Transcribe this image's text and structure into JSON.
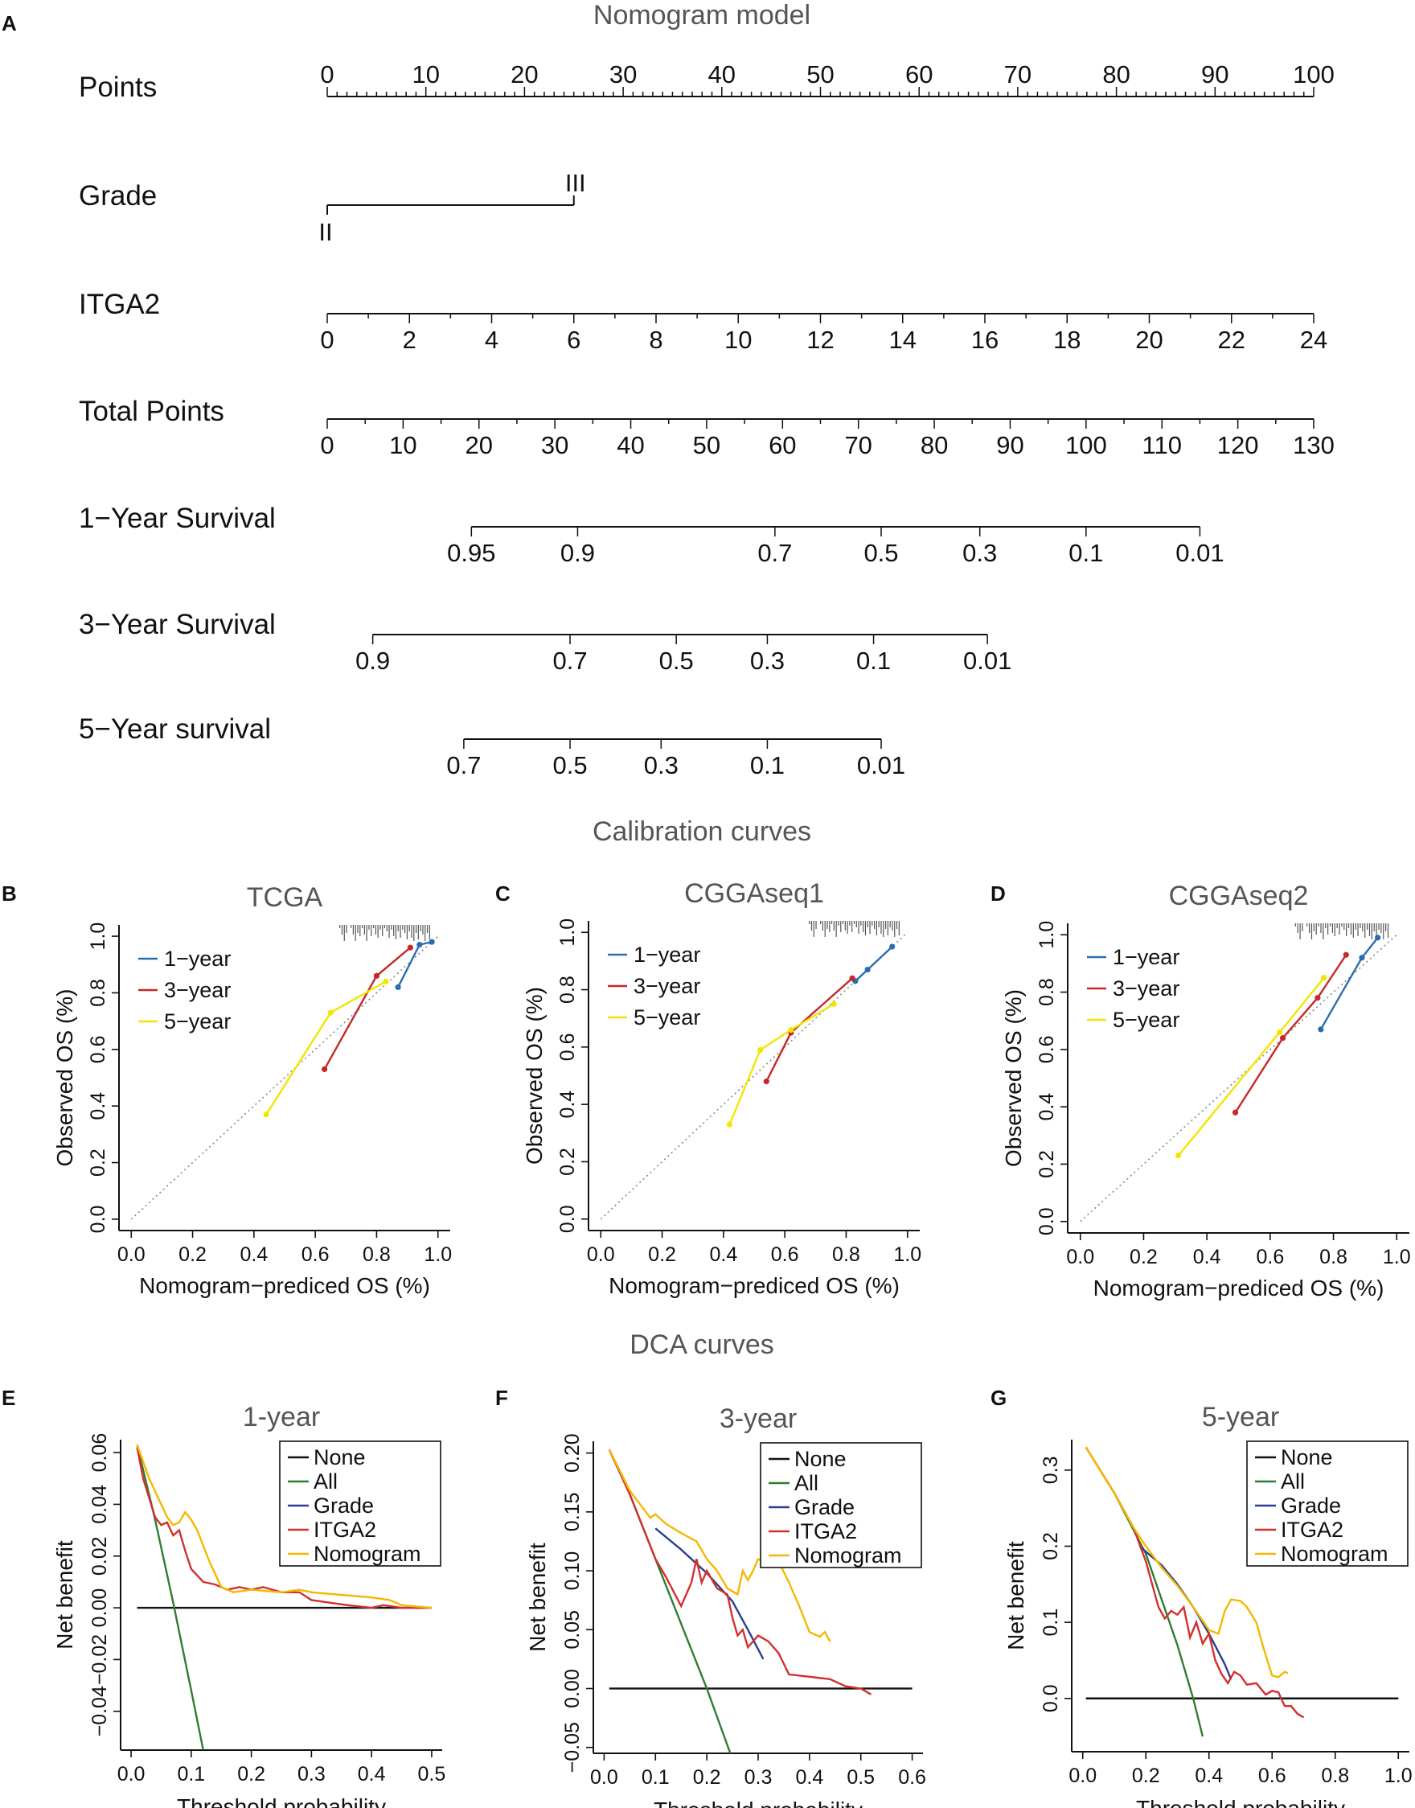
{
  "figure": {
    "section_titles": {
      "nomogram": "Nomogram model",
      "calibration": "Calibration curves",
      "dca": "DCA curves"
    },
    "panel_letters": [
      "A",
      "B",
      "C",
      "D",
      "E",
      "F",
      "G"
    ]
  },
  "chart_data": [
    {
      "type": "nomogram",
      "panel": "A",
      "title": "Nomogram model",
      "scales": [
        {
          "label": "Points",
          "ticks": [
            "0",
            "10",
            "20",
            "30",
            "40",
            "50",
            "60",
            "70",
            "80",
            "90",
            "100"
          ],
          "values": [
            0,
            10,
            20,
            30,
            40,
            50,
            60,
            70,
            80,
            90,
            100
          ],
          "min": 0,
          "max": 100
        },
        {
          "label": "Grade",
          "levels": [
            "II",
            "III"
          ],
          "points": [
            0,
            25
          ]
        },
        {
          "label": "ITGA2",
          "ticks": [
            "0",
            "2",
            "4",
            "6",
            "8",
            "10",
            "12",
            "14",
            "16",
            "18",
            "20",
            "22",
            "24"
          ],
          "values": [
            0,
            2,
            4,
            6,
            8,
            10,
            12,
            14,
            16,
            18,
            20,
            22,
            24
          ],
          "min": 0,
          "max": 24,
          "points_range": [
            0,
            100
          ]
        },
        {
          "label": "Total Points",
          "ticks": [
            "0",
            "10",
            "20",
            "30",
            "40",
            "50",
            "60",
            "70",
            "80",
            "90",
            "100",
            "110",
            "120",
            "130"
          ],
          "values": [
            0,
            10,
            20,
            30,
            40,
            50,
            60,
            70,
            80,
            90,
            100,
            110,
            120,
            130
          ],
          "min": 0,
          "max": 130
        },
        {
          "label": "1−Year Survival",
          "ticks": [
            "0.95",
            "0.9",
            "0.7",
            "0.5",
            "0.3",
            "0.1",
            "0.01"
          ],
          "total_points": [
            19,
            33,
            59,
            73,
            86,
            100,
            115
          ]
        },
        {
          "label": "3−Year Survival",
          "ticks": [
            "0.9",
            "0.7",
            "0.5",
            "0.3",
            "0.1",
            "0.01"
          ],
          "total_points": [
            6,
            32,
            46,
            58,
            72,
            87
          ]
        },
        {
          "label": "5−Year survival",
          "ticks": [
            "0.7",
            "0.5",
            "0.3",
            "0.1",
            "0.01"
          ],
          "total_points": [
            18,
            32,
            44,
            58,
            73
          ]
        }
      ]
    },
    {
      "type": "line",
      "panel": "B",
      "title": "TCGA",
      "xlabel": "Nomogram−prediced OS (%)",
      "ylabel": "Observed OS (%)",
      "xlim": [
        0,
        1
      ],
      "ylim": [
        0,
        1
      ],
      "xticks": [
        "0.0",
        "0.2",
        "0.4",
        "0.6",
        "0.8",
        "1.0"
      ],
      "yticks": [
        "0.0",
        "0.2",
        "0.4",
        "0.6",
        "0.8",
        "1.0"
      ],
      "legend": [
        "1−year",
        "3−year",
        "5−year"
      ],
      "series": [
        {
          "name": "1−year",
          "color": "#2b6cb0",
          "x": [
            0.87,
            0.94,
            0.98
          ],
          "y": [
            0.82,
            0.97,
            0.98
          ]
        },
        {
          "name": "3−year",
          "color": "#c62828",
          "x": [
            0.63,
            0.8,
            0.91
          ],
          "y": [
            0.53,
            0.86,
            0.96
          ]
        },
        {
          "name": "5−year",
          "color": "#f2e600",
          "x": [
            0.44,
            0.65,
            0.83
          ],
          "y": [
            0.37,
            0.73,
            0.84
          ]
        }
      ]
    },
    {
      "type": "line",
      "panel": "C",
      "title": "CGGAseq1",
      "xlabel": "Nomogram−prediced OS (%)",
      "ylabel": "Observed OS (%)",
      "xlim": [
        0,
        1
      ],
      "ylim": [
        0,
        1
      ],
      "xticks": [
        "0.0",
        "0.2",
        "0.4",
        "0.6",
        "0.8",
        "1.0"
      ],
      "yticks": [
        "0.0",
        "0.2",
        "0.4",
        "0.6",
        "0.8",
        "1.0"
      ],
      "legend": [
        "1−year",
        "3−year",
        "5−year"
      ],
      "series": [
        {
          "name": "1−year",
          "color": "#2b6cb0",
          "x": [
            0.83,
            0.87,
            0.95
          ],
          "y": [
            0.83,
            0.87,
            0.95
          ]
        },
        {
          "name": "3−year",
          "color": "#c62828",
          "x": [
            0.54,
            0.62,
            0.82
          ],
          "y": [
            0.48,
            0.65,
            0.84
          ]
        },
        {
          "name": "5−year",
          "color": "#f2e600",
          "x": [
            0.42,
            0.52,
            0.62,
            0.76
          ],
          "y": [
            0.33,
            0.59,
            0.66,
            0.75
          ]
        }
      ]
    },
    {
      "type": "line",
      "panel": "D",
      "title": "CGGAseq2",
      "xlabel": "Nomogram−prediced OS (%)",
      "ylabel": "Observed OS (%)",
      "xlim": [
        0,
        1
      ],
      "ylim": [
        0,
        1
      ],
      "xticks": [
        "0.0",
        "0.2",
        "0.4",
        "0.6",
        "0.8",
        "1.0"
      ],
      "yticks": [
        "0.0",
        "0.2",
        "0.4",
        "0.6",
        "0.8",
        "1.0"
      ],
      "legend": [
        "1−year",
        "3−year",
        "5−year"
      ],
      "series": [
        {
          "name": "1−year",
          "color": "#2b6cb0",
          "x": [
            0.76,
            0.89,
            0.94
          ],
          "y": [
            0.67,
            0.92,
            0.99
          ]
        },
        {
          "name": "3−year",
          "color": "#c62828",
          "x": [
            0.49,
            0.64,
            0.75,
            0.84
          ],
          "y": [
            0.38,
            0.64,
            0.78,
            0.93
          ]
        },
        {
          "name": "5−year",
          "color": "#f2e600",
          "x": [
            0.31,
            0.63,
            0.77
          ],
          "y": [
            0.23,
            0.66,
            0.85
          ]
        }
      ]
    },
    {
      "type": "line",
      "panel": "E",
      "title": "1-year",
      "xlabel": "Threshold probability",
      "ylabel": "Net benefit",
      "xlim": [
        0,
        0.5
      ],
      "ylim": [
        -0.055,
        0.065
      ],
      "xticks": [
        "0.0",
        "0.1",
        "0.2",
        "0.3",
        "0.4",
        "0.5"
      ],
      "xtick_values": [
        0,
        0.1,
        0.2,
        0.3,
        0.4,
        0.5
      ],
      "yticks": [
        "−0.04",
        "−0.02",
        "0.00",
        "0.02",
        "0.04",
        "0.06"
      ],
      "ytick_values": [
        -0.04,
        -0.02,
        0,
        0.02,
        0.04,
        0.06
      ],
      "legend": [
        "None",
        "All",
        "Grade",
        "ITGA2",
        "Nomogram"
      ],
      "series": [
        {
          "name": "None",
          "color": "#111111",
          "x": [
            0.01,
            0.5
          ],
          "y": [
            0,
            0
          ]
        },
        {
          "name": "All",
          "color": "#2e7d32",
          "x": [
            0.01,
            0.04,
            0.07,
            0.1,
            0.12
          ],
          "y": [
            0.063,
            0.034,
            0.002,
            -0.032,
            -0.055
          ]
        },
        {
          "name": "Grade",
          "color": "#2c3e8f",
          "x": [],
          "y": []
        },
        {
          "name": "ITGA2",
          "color": "#d32f2f",
          "x": [
            0.01,
            0.02,
            0.04,
            0.05,
            0.06,
            0.07,
            0.08,
            0.09,
            0.1,
            0.12,
            0.14,
            0.16,
            0.18,
            0.2,
            0.22,
            0.25,
            0.28,
            0.3,
            0.33,
            0.36,
            0.4,
            0.42,
            0.45,
            0.5
          ],
          "y": [
            0.062,
            0.05,
            0.035,
            0.032,
            0.033,
            0.028,
            0.03,
            0.022,
            0.015,
            0.01,
            0.009,
            0.007,
            0.008,
            0.007,
            0.008,
            0.006,
            0.006,
            0.003,
            0.002,
            0.001,
            0.0,
            0.001,
            0.0,
            0.0
          ]
        },
        {
          "name": "Nomogram",
          "color": "#f5b800",
          "x": [
            0.01,
            0.03,
            0.05,
            0.06,
            0.07,
            0.08,
            0.09,
            0.1,
            0.11,
            0.13,
            0.15,
            0.17,
            0.2,
            0.25,
            0.28,
            0.3,
            0.35,
            0.4,
            0.43,
            0.45,
            0.5
          ],
          "y": [
            0.063,
            0.05,
            0.04,
            0.035,
            0.032,
            0.033,
            0.037,
            0.034,
            0.03,
            0.018,
            0.008,
            0.006,
            0.007,
            0.006,
            0.007,
            0.006,
            0.005,
            0.004,
            0.003,
            0.001,
            0.0
          ]
        }
      ]
    },
    {
      "type": "line",
      "panel": "F",
      "title": "3-year",
      "xlabel": "Threshold probability",
      "ylabel": "Net benefit",
      "xlim": [
        0,
        0.6
      ],
      "ylim": [
        -0.055,
        0.21
      ],
      "xticks": [
        "0.0",
        "0.1",
        "0.2",
        "0.3",
        "0.4",
        "0.5",
        "0.6"
      ],
      "xtick_values": [
        0,
        0.1,
        0.2,
        0.3,
        0.4,
        0.5,
        0.6
      ],
      "yticks": [
        "−0.05",
        "0.00",
        "0.05",
        "0.10",
        "0.15",
        "0.20"
      ],
      "ytick_values": [
        -0.05,
        0,
        0.05,
        0.1,
        0.15,
        0.2
      ],
      "legend": [
        "None",
        "All",
        "Grade",
        "ITGA2",
        "Nomogram"
      ],
      "series": [
        {
          "name": "None",
          "color": "#111111",
          "x": [
            0.01,
            0.6
          ],
          "y": [
            0,
            0
          ]
        },
        {
          "name": "All",
          "color": "#2e7d32",
          "x": [
            0.01,
            0.05,
            0.1,
            0.15,
            0.2,
            0.25,
            0.26
          ],
          "y": [
            0.203,
            0.165,
            0.11,
            0.055,
            0.0,
            -0.06,
            -0.07
          ]
        },
        {
          "name": "Grade",
          "color": "#2c3e8f",
          "x": [
            0.1,
            0.15,
            0.2,
            0.25,
            0.28,
            0.31
          ],
          "y": [
            0.136,
            0.118,
            0.098,
            0.074,
            0.05,
            0.025
          ]
        },
        {
          "name": "ITGA2",
          "color": "#d32f2f",
          "x": [
            0.01,
            0.05,
            0.1,
            0.12,
            0.15,
            0.17,
            0.18,
            0.19,
            0.2,
            0.22,
            0.24,
            0.25,
            0.26,
            0.27,
            0.28,
            0.3,
            0.32,
            0.34,
            0.36,
            0.4,
            0.44,
            0.47,
            0.5,
            0.52
          ],
          "y": [
            0.203,
            0.165,
            0.11,
            0.095,
            0.07,
            0.09,
            0.11,
            0.09,
            0.1,
            0.085,
            0.08,
            0.06,
            0.045,
            0.05,
            0.035,
            0.045,
            0.04,
            0.03,
            0.012,
            0.01,
            0.008,
            0.002,
            0.0,
            -0.005
          ]
        },
        {
          "name": "Nomogram",
          "color": "#f5b800",
          "x": [
            0.01,
            0.05,
            0.09,
            0.1,
            0.12,
            0.15,
            0.18,
            0.2,
            0.22,
            0.24,
            0.26,
            0.27,
            0.28,
            0.29,
            0.3,
            0.32,
            0.34,
            0.36,
            0.38,
            0.4,
            0.42,
            0.43,
            0.44
          ],
          "y": [
            0.203,
            0.168,
            0.145,
            0.148,
            0.14,
            0.132,
            0.125,
            0.11,
            0.1,
            0.085,
            0.08,
            0.1,
            0.092,
            0.1,
            0.11,
            0.105,
            0.108,
            0.09,
            0.07,
            0.048,
            0.044,
            0.048,
            0.04
          ]
        }
      ]
    },
    {
      "type": "line",
      "panel": "G",
      "title": "5-year",
      "xlabel": "Threshold probability",
      "ylabel": "Net benefit",
      "xlim": [
        0,
        1.0
      ],
      "ylim": [
        -0.07,
        0.34
      ],
      "xticks": [
        "0.0",
        "0.2",
        "0.4",
        "0.6",
        "0.8",
        "1.0"
      ],
      "xtick_values": [
        0,
        0.2,
        0.4,
        0.6,
        0.8,
        1.0
      ],
      "yticks": [
        "0.0",
        "0.1",
        "0.2",
        "0.3"
      ],
      "ytick_values": [
        0,
        0.1,
        0.2,
        0.3
      ],
      "legend": [
        "None",
        "All",
        "Grade",
        "ITGA2",
        "Nomogram"
      ],
      "series": [
        {
          "name": "None",
          "color": "#111111",
          "x": [
            0.01,
            1.0
          ],
          "y": [
            0,
            0
          ]
        },
        {
          "name": "All",
          "color": "#2e7d32",
          "x": [
            0.01,
            0.1,
            0.2,
            0.3,
            0.35,
            0.38
          ],
          "y": [
            0.33,
            0.27,
            0.19,
            0.07,
            0.0,
            -0.05
          ]
        },
        {
          "name": "Grade",
          "color": "#2c3e8f",
          "x": [
            0.18,
            0.25,
            0.3,
            0.35,
            0.4,
            0.45,
            0.47
          ],
          "y": [
            0.2,
            0.175,
            0.15,
            0.12,
            0.085,
            0.045,
            0.025
          ]
        },
        {
          "name": "ITGA2",
          "color": "#d32f2f",
          "x": [
            0.01,
            0.1,
            0.16,
            0.2,
            0.24,
            0.26,
            0.28,
            0.3,
            0.32,
            0.34,
            0.36,
            0.38,
            0.4,
            0.42,
            0.44,
            0.46,
            0.48,
            0.5,
            0.52,
            0.55,
            0.58,
            0.6,
            0.62,
            0.64,
            0.66,
            0.68,
            0.7
          ],
          "y": [
            0.33,
            0.27,
            0.225,
            0.18,
            0.12,
            0.105,
            0.115,
            0.11,
            0.12,
            0.08,
            0.1,
            0.072,
            0.085,
            0.05,
            0.032,
            0.02,
            0.035,
            0.03,
            0.018,
            0.02,
            0.005,
            0.01,
            0.008,
            -0.01,
            -0.01,
            -0.02,
            -0.025
          ]
        },
        {
          "name": "Nomogram",
          "color": "#f5b800",
          "x": [
            0.01,
            0.1,
            0.16,
            0.2,
            0.25,
            0.3,
            0.35,
            0.4,
            0.43,
            0.45,
            0.47,
            0.5,
            0.52,
            0.55,
            0.57,
            0.6,
            0.62,
            0.64,
            0.65
          ],
          "y": [
            0.33,
            0.27,
            0.225,
            0.2,
            0.172,
            0.148,
            0.12,
            0.09,
            0.085,
            0.115,
            0.13,
            0.128,
            0.12,
            0.1,
            0.07,
            0.03,
            0.028,
            0.035,
            0.033
          ]
        }
      ]
    }
  ]
}
